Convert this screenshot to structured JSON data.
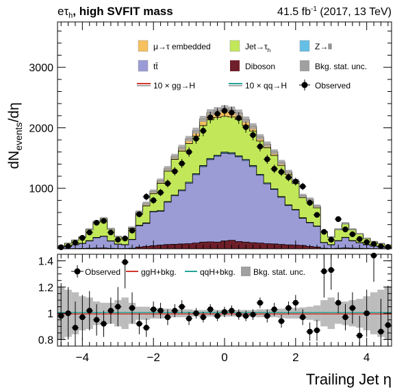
{
  "header": {
    "channel_main": "eτ",
    "channel_sub": "h",
    "channel_rest": ", high SVFIT mass",
    "lumi_pre": "41.5 fb",
    "lumi_sup": "-1",
    "lumi_post": " (2017, 13 TeV)"
  },
  "colors": {
    "emb": "#f7c15d",
    "jet": "#c2e85a",
    "zll": "#64c0e6",
    "tt": "#9b9bd6",
    "diboson": "#6e1f2a",
    "unc": "#a0a0a0",
    "ggh": "#d5342c",
    "qqh": "#22a396",
    "obs": "#000000"
  },
  "legend": {
    "emb": "μ→τ embedded",
    "jet_main": "Jet→τ",
    "jet_sub": "h",
    "zll": "Z→ll",
    "tt": "tt̄",
    "diboson": "Diboson",
    "unc": "Bkg. stat. unc.",
    "ggh": "10 × gg→H",
    "qqh": "10 × qq→H",
    "obs": "Observed"
  },
  "ratio_legend": {
    "obs": "Observed",
    "ggh": "ggH+bkg.",
    "qqh": "qqH+bkg.",
    "unc": "Bkg. stat. unc."
  },
  "axes": {
    "ylabel_main": "dN",
    "ylabel_sub": "events",
    "ylabel_end": "/dη",
    "xlabel": "Trailing Jet  η"
  },
  "chart_data": [
    {
      "type": "area",
      "panel": "main",
      "stacked": true,
      "step": true,
      "xlim": [
        -4.7,
        4.7
      ],
      "ylim": [
        0,
        3750
      ],
      "yticks": [
        1000,
        2000,
        3000
      ],
      "xticks": [
        -4,
        -2,
        0,
        2,
        4
      ],
      "x": [
        -4.7,
        -4.5,
        -4.3,
        -4.1,
        -3.9,
        -3.7,
        -3.5,
        -3.3,
        -3.1,
        -2.9,
        -2.7,
        -2.5,
        -2.3,
        -2.1,
        -1.9,
        -1.7,
        -1.5,
        -1.3,
        -1.1,
        -0.9,
        -0.7,
        -0.5,
        -0.3,
        -0.1,
        0.1,
        0.3,
        0.5,
        0.7,
        0.9,
        1.1,
        1.3,
        1.5,
        1.7,
        1.9,
        2.1,
        2.3,
        2.5,
        2.7,
        2.9,
        3.1,
        3.3,
        3.5,
        3.7,
        3.9,
        4.1,
        4.3,
        4.5
      ],
      "series": [
        {
          "name": "Diboson",
          "values": [
            2,
            3,
            5,
            7,
            9,
            12,
            14,
            8,
            6,
            6,
            10,
            30,
            40,
            50,
            60,
            70,
            75,
            80,
            85,
            95,
            110,
            115,
            110,
            130,
            140,
            120,
            110,
            100,
            95,
            85,
            80,
            72,
            65,
            60,
            55,
            40,
            30,
            10,
            6,
            10,
            14,
            10,
            8,
            6,
            4,
            3,
            2
          ]
        },
        {
          "name": "tt̄",
          "values": [
            25,
            40,
            60,
            80,
            120,
            170,
            190,
            120,
            70,
            60,
            140,
            350,
            380,
            560,
            560,
            700,
            800,
            880,
            1000,
            1130,
            1250,
            1360,
            1420,
            1450,
            1430,
            1400,
            1350,
            1260,
            1120,
            990,
            900,
            780,
            650,
            580,
            450,
            390,
            340,
            90,
            60,
            120,
            170,
            120,
            90,
            60,
            40,
            30,
            20
          ]
        },
        {
          "name": "Z→ll",
          "values": [
            2,
            2,
            3,
            4,
            5,
            6,
            6,
            4,
            3,
            3,
            5,
            8,
            9,
            10,
            11,
            12,
            13,
            14,
            15,
            16,
            17,
            17,
            18,
            18,
            18,
            17,
            17,
            16,
            15,
            14,
            13,
            12,
            11,
            10,
            9,
            8,
            7,
            4,
            3,
            5,
            6,
            5,
            4,
            3,
            2,
            2,
            2
          ]
        },
        {
          "name": "Jet→τh",
          "values": [
            20,
            45,
            70,
            100,
            180,
            250,
            280,
            190,
            120,
            110,
            180,
            190,
            280,
            290,
            450,
            500,
            590,
            640,
            640,
            620,
            660,
            640,
            620,
            590,
            590,
            600,
            560,
            570,
            550,
            580,
            550,
            510,
            500,
            430,
            330,
            350,
            300,
            170,
            120,
            180,
            220,
            180,
            140,
            100,
            70,
            50,
            35
          ]
        },
        {
          "name": "μ→τ embedded",
          "values": [
            5,
            5,
            7,
            9,
            11,
            12,
            15,
            10,
            6,
            6,
            20,
            30,
            40,
            40,
            45,
            45,
            50,
            60,
            80,
            90,
            110,
            120,
            120,
            130,
            120,
            110,
            100,
            80,
            70,
            60,
            60,
            55,
            45,
            40,
            35,
            30,
            30,
            10,
            8,
            10,
            12,
            10,
            8,
            6,
            5,
            5,
            4
          ]
        }
      ],
      "observed": [
        25,
        40,
        100,
        180,
        270,
        430,
        460,
        270,
        150,
        170,
        300,
        570,
        860,
        800,
        930,
        1080,
        1280,
        1410,
        1600,
        1820,
        1950,
        2170,
        2230,
        2280,
        2250,
        2160,
        2010,
        1880,
        1690,
        1480,
        1320,
        1270,
        1180,
        1110,
        1030,
        760,
        560,
        280,
        150,
        490,
        320,
        240,
        160,
        110,
        80,
        40,
        30
      ],
      "observed_err": [
        15,
        20,
        25,
        30,
        35,
        40,
        40,
        35,
        25,
        25,
        35,
        50,
        60,
        55,
        60,
        65,
        70,
        75,
        80,
        85,
        90,
        95,
        95,
        95,
        95,
        95,
        90,
        85,
        80,
        75,
        70,
        70,
        65,
        65,
        60,
        55,
        45,
        35,
        25,
        45,
        35,
        30,
        25,
        20,
        18,
        15,
        15
      ],
      "bkg_unc": [
        6,
        8,
        10,
        12,
        15,
        20,
        20,
        15,
        12,
        12,
        15,
        25,
        30,
        30,
        35,
        40,
        40,
        45,
        45,
        50,
        50,
        55,
        55,
        55,
        55,
        55,
        50,
        50,
        45,
        45,
        40,
        40,
        35,
        35,
        30,
        30,
        25,
        15,
        12,
        15,
        20,
        15,
        12,
        10,
        8,
        8,
        6
      ]
    },
    {
      "type": "scatter",
      "panel": "ratio",
      "xlim": [
        -4.7,
        4.7
      ],
      "ylim": [
        0.75,
        1.45
      ],
      "yticks": [
        0.8,
        1,
        1.2,
        1.4
      ],
      "xticks": [
        -4,
        -2,
        0,
        2,
        4
      ],
      "x": [
        -4.6,
        -4.4,
        -4.2,
        -4.0,
        -3.8,
        -3.6,
        -3.4,
        -3.2,
        -3.0,
        -2.8,
        -2.6,
        -2.4,
        -2.2,
        -2.0,
        -1.8,
        -1.6,
        -1.4,
        -1.2,
        -1.0,
        -0.8,
        -0.6,
        -0.4,
        -0.2,
        0.0,
        0.2,
        0.4,
        0.6,
        0.8,
        1.0,
        1.2,
        1.4,
        1.6,
        1.8,
        2.0,
        2.2,
        2.4,
        2.6,
        2.8,
        3.0,
        3.2,
        3.4,
        3.6,
        3.8,
        4.0,
        4.2,
        4.4,
        4.6
      ],
      "values": [
        0.98,
        1.0,
        0.89,
        0.97,
        1.02,
        0.95,
        0.92,
        1.02,
        1.05,
        1.39,
        1.04,
        0.92,
        0.89,
        1.03,
        1.02,
        0.97,
        1.02,
        1.05,
        0.96,
        1.0,
        0.97,
        1.03,
        0.98,
        1.01,
        1.02,
        0.99,
        0.98,
        0.99,
        1.08,
        0.98,
        1.03,
        0.94,
        1.04,
        1.08,
        0.97,
        0.86,
        0.87,
        1.32,
        1.33,
        1.08,
        0.97,
        1.04,
        0.83,
        1.0,
        1.44,
        0.86,
        0.91
      ],
      "errors": [
        0.25,
        0.2,
        0.2,
        0.17,
        0.15,
        0.12,
        0.1,
        0.1,
        0.15,
        0.2,
        0.12,
        0.08,
        0.07,
        0.06,
        0.06,
        0.06,
        0.05,
        0.05,
        0.05,
        0.04,
        0.04,
        0.04,
        0.04,
        0.04,
        0.04,
        0.04,
        0.04,
        0.04,
        0.04,
        0.05,
        0.05,
        0.05,
        0.05,
        0.06,
        0.06,
        0.07,
        0.08,
        0.2,
        0.15,
        0.08,
        0.1,
        0.12,
        0.15,
        0.18,
        0.2,
        0.25,
        0.3
      ],
      "bkg_unc": [
        0.2,
        0.18,
        0.16,
        0.13,
        0.12,
        0.09,
        0.08,
        0.08,
        0.1,
        0.12,
        0.08,
        0.05,
        0.05,
        0.04,
        0.04,
        0.035,
        0.03,
        0.03,
        0.03,
        0.025,
        0.025,
        0.025,
        0.025,
        0.025,
        0.025,
        0.025,
        0.025,
        0.025,
        0.03,
        0.03,
        0.03,
        0.035,
        0.04,
        0.04,
        0.045,
        0.05,
        0.06,
        0.1,
        0.12,
        0.08,
        0.09,
        0.1,
        0.11,
        0.13,
        0.16,
        0.18,
        0.2
      ]
    }
  ]
}
